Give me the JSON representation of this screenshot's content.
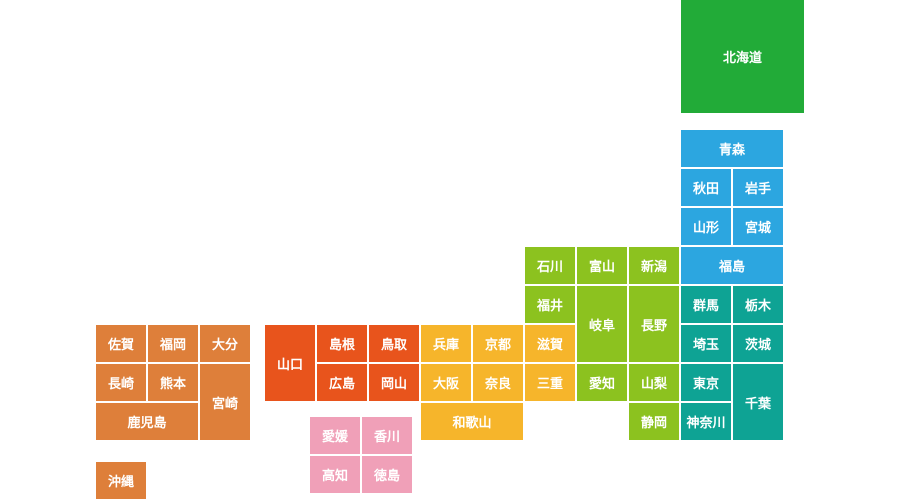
{
  "regions": [
    {
      "prefectures": [
        "北海道"
      ]
    },
    {
      "prefectures": [
        "青森",
        "秋田",
        "岩手",
        "山形",
        "宮城",
        "福島"
      ]
    },
    {
      "prefectures": [
        "群馬",
        "栃木",
        "埼玉",
        "茨城",
        "東京",
        "千葉",
        "神奈川"
      ]
    },
    {
      "prefectures": [
        "石川",
        "富山",
        "新潟",
        "福井",
        "岐阜",
        "長野",
        "愛知",
        "山梨",
        "静岡"
      ]
    },
    {
      "prefectures": [
        "滋賀",
        "兵庫",
        "京都",
        "大阪",
        "奈良",
        "三重",
        "和歌山"
      ]
    },
    {
      "prefectures": [
        "山口",
        "島根",
        "鳥取",
        "広島",
        "岡山"
      ]
    },
    {
      "prefectures": [
        "愛媛",
        "香川",
        "高知",
        "徳島"
      ]
    },
    {
      "prefectures": [
        "佐賀",
        "福岡",
        "大分",
        "長崎",
        "熊本",
        "宮崎",
        "鹿児島",
        "沖縄"
      ]
    }
  ]
}
